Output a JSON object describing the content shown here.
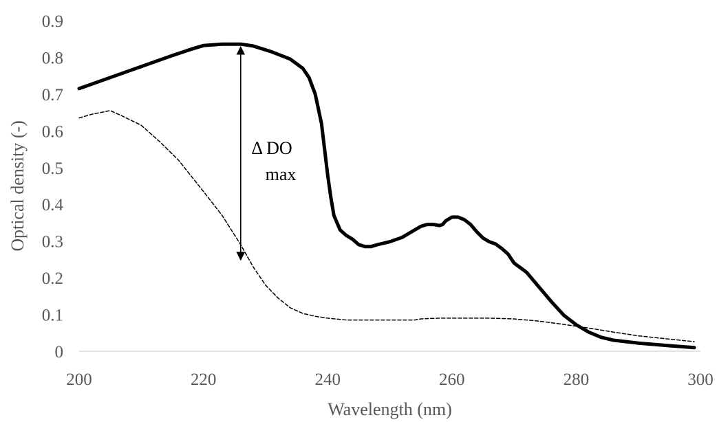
{
  "chart_data": {
    "type": "line",
    "title": "",
    "xlabel": "Wavelength  (nm)",
    "ylabel": "Optical density  (-)",
    "xlim": [
      200,
      300
    ],
    "ylim": [
      0,
      0.9
    ],
    "xticks": [
      200,
      220,
      240,
      260,
      280,
      300
    ],
    "yticks": [
      0,
      0.1,
      0.2,
      0.3,
      0.4,
      0.5,
      0.6,
      0.7,
      0.8,
      0.9
    ],
    "grid": false,
    "legend": "none",
    "series": [
      {
        "style": "solid-thick",
        "color": "#000000",
        "x": [
          200,
          205,
          210,
          215,
          218,
          220,
          223,
          226,
          228,
          231,
          234,
          236,
          237,
          238,
          239,
          239.5,
          240,
          240.5,
          241,
          242,
          243,
          244,
          245,
          246,
          247,
          248,
          250,
          252,
          254,
          255,
          256,
          257,
          258,
          258.5,
          259,
          260,
          261,
          262,
          263,
          264,
          265,
          266,
          267,
          268,
          269,
          270,
          272,
          274,
          276,
          278,
          280,
          282,
          284,
          286,
          290,
          295,
          299
        ],
        "y": [
          0.715,
          0.745,
          0.775,
          0.805,
          0.822,
          0.832,
          0.836,
          0.836,
          0.831,
          0.815,
          0.795,
          0.77,
          0.745,
          0.7,
          0.62,
          0.55,
          0.48,
          0.42,
          0.37,
          0.33,
          0.315,
          0.305,
          0.29,
          0.285,
          0.285,
          0.29,
          0.298,
          0.31,
          0.33,
          0.34,
          0.345,
          0.345,
          0.342,
          0.345,
          0.355,
          0.365,
          0.365,
          0.358,
          0.345,
          0.325,
          0.308,
          0.298,
          0.292,
          0.28,
          0.265,
          0.24,
          0.215,
          0.175,
          0.135,
          0.098,
          0.072,
          0.052,
          0.038,
          0.03,
          0.022,
          0.015,
          0.01
        ]
      },
      {
        "style": "dashed",
        "color": "#000000",
        "x": [
          200,
          202,
          205,
          207,
          210,
          213,
          216,
          220,
          223,
          226,
          228,
          230,
          232,
          234,
          236,
          238,
          240,
          243,
          246,
          250,
          254,
          255,
          258,
          262,
          266,
          270,
          274,
          278,
          282,
          286,
          290,
          295,
          299
        ],
        "y": [
          0.635,
          0.645,
          0.655,
          0.64,
          0.615,
          0.57,
          0.52,
          0.435,
          0.37,
          0.29,
          0.23,
          0.18,
          0.145,
          0.118,
          0.103,
          0.095,
          0.09,
          0.085,
          0.085,
          0.085,
          0.085,
          0.088,
          0.09,
          0.09,
          0.09,
          0.088,
          0.082,
          0.073,
          0.063,
          0.052,
          0.042,
          0.033,
          0.026
        ]
      }
    ],
    "annotations": {
      "arrow": {
        "x": 226,
        "y_top": 0.836,
        "y_bottom": 0.245
      },
      "label_line1": "Δ DO",
      "label_line2": "max"
    }
  }
}
